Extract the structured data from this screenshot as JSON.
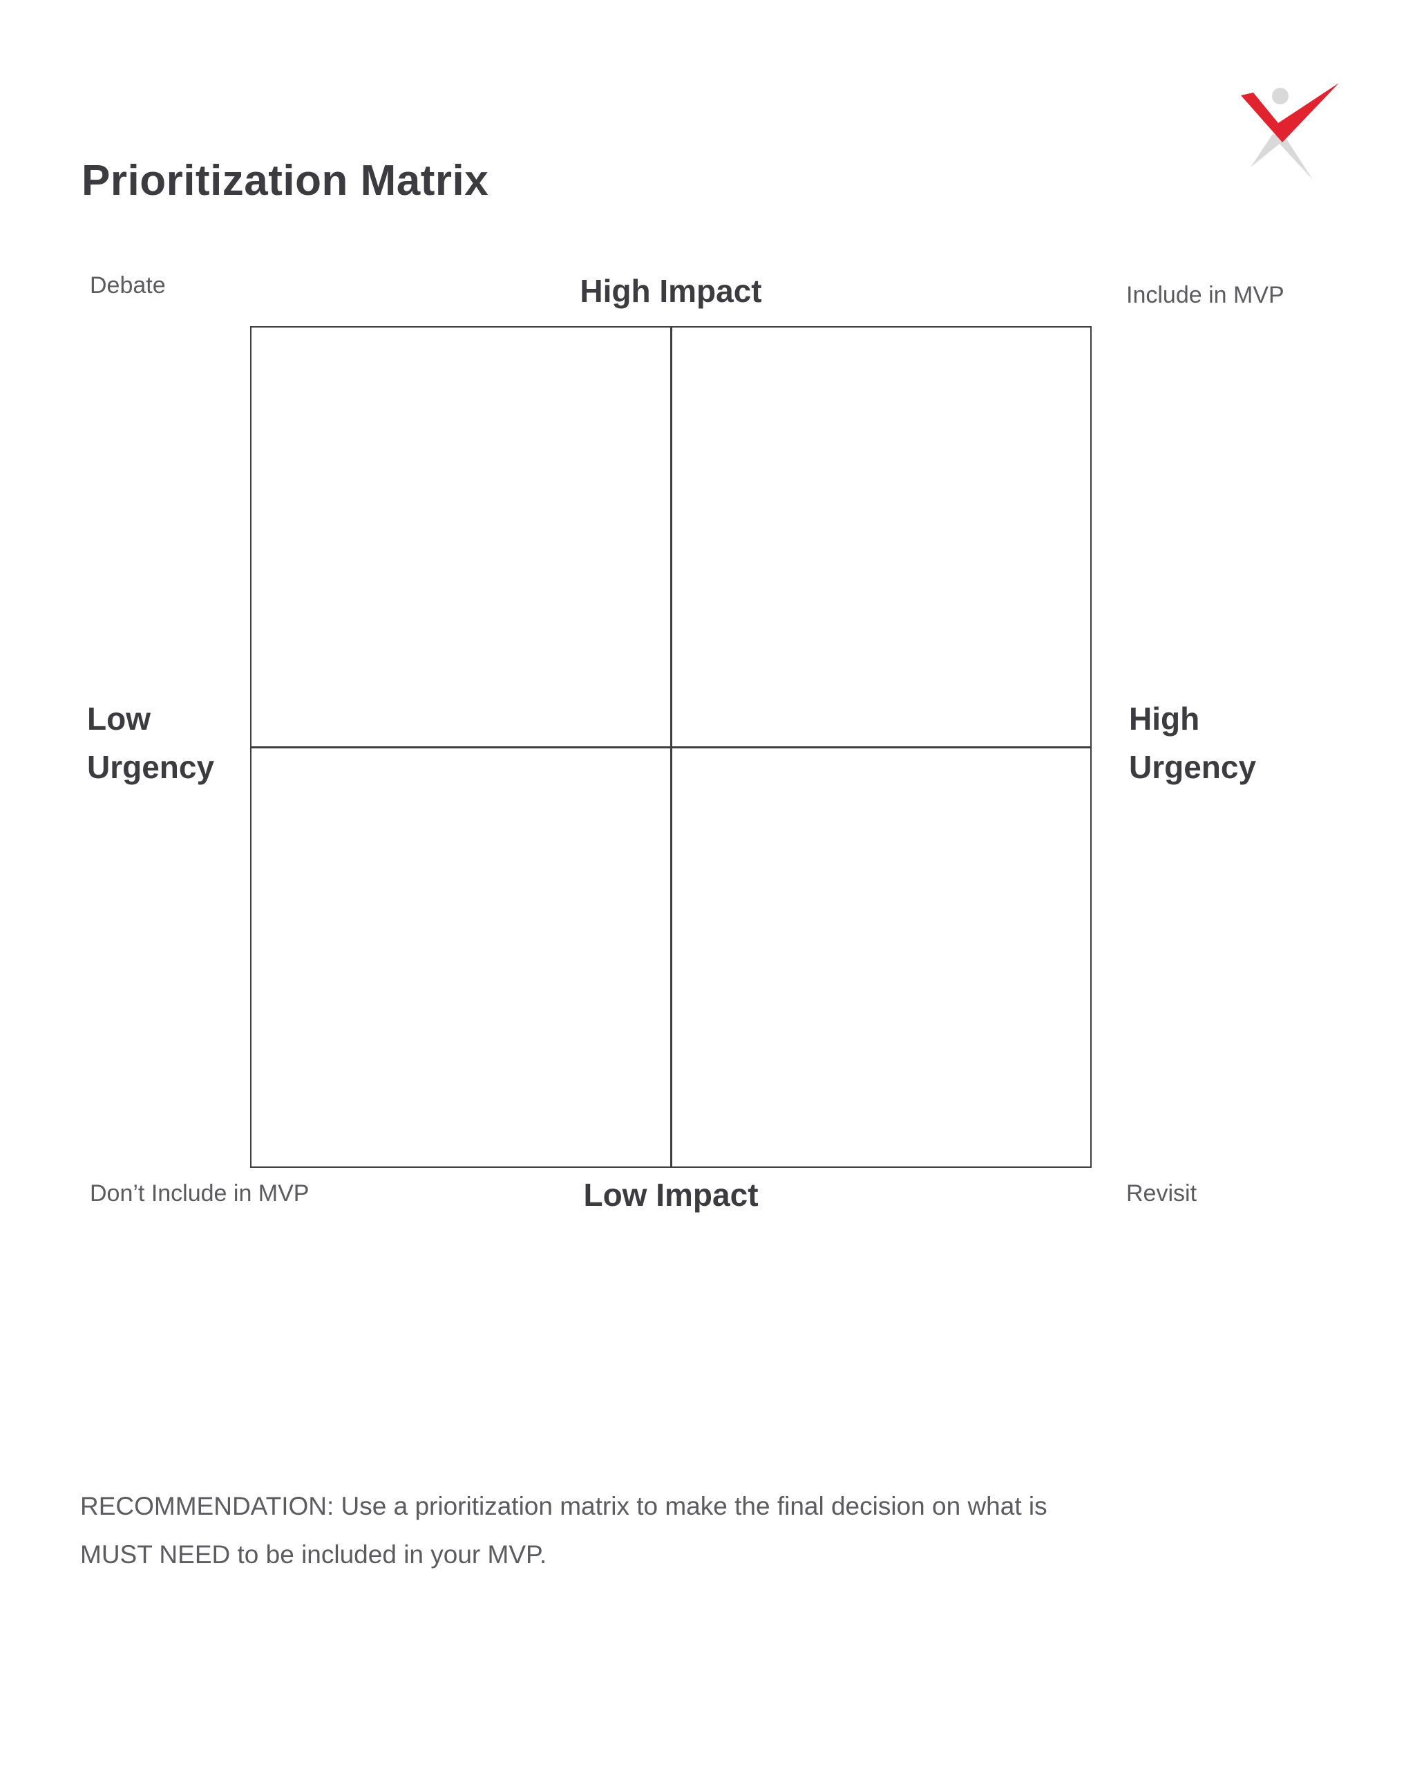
{
  "title": "Prioritization Matrix",
  "logo": {
    "icon": "checkmark-figure-logo",
    "accent_color": "#e0232f",
    "shadow_color": "#d9d9d9"
  },
  "corners": {
    "top_left": "Debate",
    "top_right": "Include in MVP",
    "bottom_left": "Don’t Include in MVP",
    "bottom_right": "Revisit"
  },
  "axes": {
    "top": "High Impact",
    "bottom": "Low Impact",
    "left": [
      "Low",
      "Urgency"
    ],
    "right": [
      "High",
      "Urgency"
    ]
  },
  "recommendation": [
    "RECOMMENDATION: Use a prioritization matrix to make the final decision on what is",
    "MUST NEED to be included in your MVP."
  ]
}
